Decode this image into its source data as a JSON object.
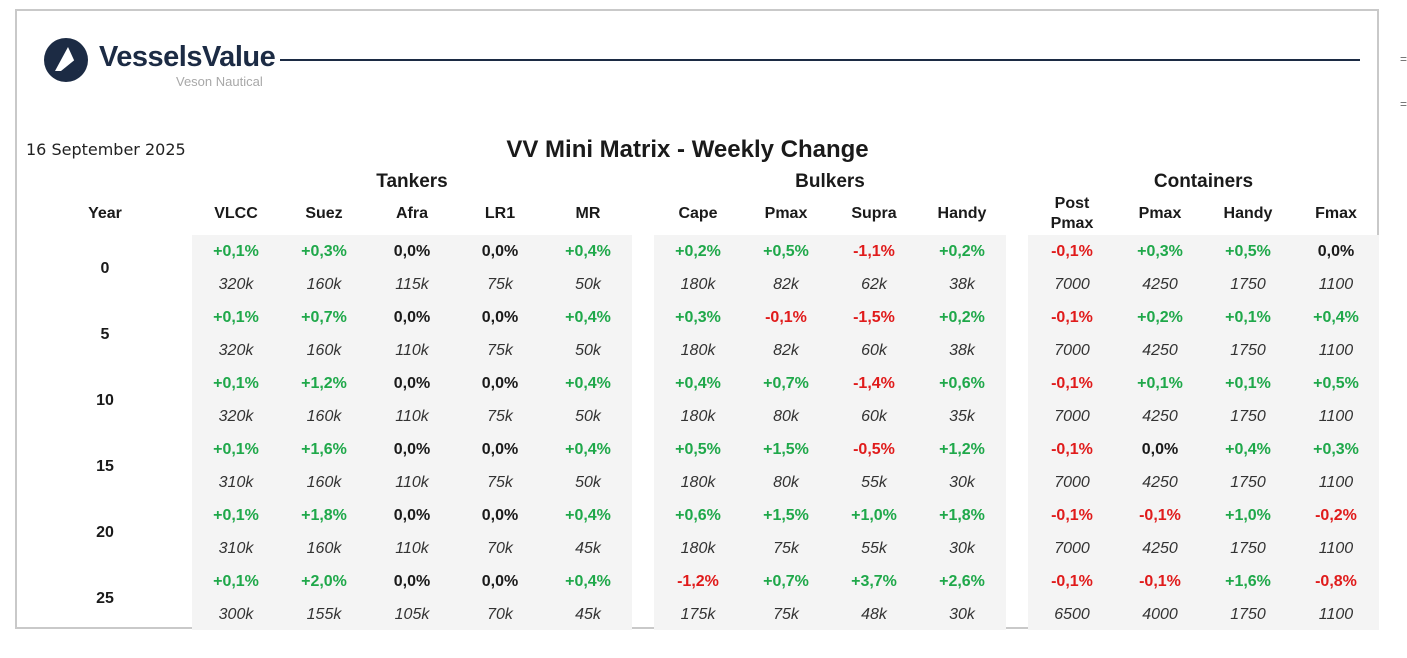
{
  "brand": {
    "name": "VesselsValue",
    "sub": "Veson Nautical"
  },
  "date": "16 September 2025",
  "title": "VV Mini Matrix - Weekly Change",
  "year_label": "Year",
  "groups": [
    {
      "name": "Tankers",
      "columns": [
        "VLCC",
        "Suez",
        "Afra",
        "LR1",
        "MR"
      ]
    },
    {
      "name": "Bulkers",
      "columns": [
        "Cape",
        "Pmax",
        "Supra",
        "Handy"
      ]
    },
    {
      "name": "Containers",
      "columns": [
        "Post\nPmax",
        "Pmax",
        "Handy",
        "Fmax"
      ]
    }
  ],
  "rows": [
    {
      "year": "0",
      "changes": [
        "+0,1%",
        "+0,3%",
        "0,0%",
        "0,0%",
        "+0,4%",
        "+0,2%",
        "+0,5%",
        "-1,1%",
        "+0,2%",
        "-0,1%",
        "+0,3%",
        "+0,5%",
        "0,0%"
      ],
      "values": [
        "320k",
        "160k",
        "115k",
        "75k",
        "50k",
        "180k",
        "82k",
        "62k",
        "38k",
        "7000",
        "4250",
        "1750",
        "1100"
      ]
    },
    {
      "year": "5",
      "changes": [
        "+0,1%",
        "+0,7%",
        "0,0%",
        "0,0%",
        "+0,4%",
        "+0,3%",
        "-0,1%",
        "-1,5%",
        "+0,2%",
        "-0,1%",
        "+0,2%",
        "+0,1%",
        "+0,4%"
      ],
      "values": [
        "320k",
        "160k",
        "110k",
        "75k",
        "50k",
        "180k",
        "82k",
        "60k",
        "38k",
        "7000",
        "4250",
        "1750",
        "1100"
      ]
    },
    {
      "year": "10",
      "changes": [
        "+0,1%",
        "+1,2%",
        "0,0%",
        "0,0%",
        "+0,4%",
        "+0,4%",
        "+0,7%",
        "-1,4%",
        "+0,6%",
        "-0,1%",
        "+0,1%",
        "+0,1%",
        "+0,5%"
      ],
      "values": [
        "320k",
        "160k",
        "110k",
        "75k",
        "50k",
        "180k",
        "80k",
        "60k",
        "35k",
        "7000",
        "4250",
        "1750",
        "1100"
      ]
    },
    {
      "year": "15",
      "changes": [
        "+0,1%",
        "+1,6%",
        "0,0%",
        "0,0%",
        "+0,4%",
        "+0,5%",
        "+1,5%",
        "-0,5%",
        "+1,2%",
        "-0,1%",
        "0,0%",
        "+0,4%",
        "+0,3%"
      ],
      "values": [
        "310k",
        "160k",
        "110k",
        "75k",
        "50k",
        "180k",
        "80k",
        "55k",
        "30k",
        "7000",
        "4250",
        "1750",
        "1100"
      ]
    },
    {
      "year": "20",
      "changes": [
        "+0,1%",
        "+1,8%",
        "0,0%",
        "0,0%",
        "+0,4%",
        "+0,6%",
        "+1,5%",
        "+1,0%",
        "+1,8%",
        "-0,1%",
        "-0,1%",
        "+1,0%",
        "-0,2%"
      ],
      "values": [
        "310k",
        "160k",
        "110k",
        "70k",
        "45k",
        "180k",
        "75k",
        "55k",
        "30k",
        "7000",
        "4250",
        "1750",
        "1100"
      ]
    },
    {
      "year": "25",
      "changes": [
        "+0,1%",
        "+2,0%",
        "0,0%",
        "0,0%",
        "+0,4%",
        "-1,2%",
        "+0,7%",
        "+3,7%",
        "+2,6%",
        "-0,1%",
        "-0,1%",
        "+1,6%",
        "-0,8%"
      ],
      "values": [
        "300k",
        "155k",
        "105k",
        "70k",
        "45k",
        "175k",
        "75k",
        "48k",
        "30k",
        "6500",
        "4000",
        "1750",
        "1100"
      ]
    }
  ],
  "colors": {
    "positive": "#1fa84a",
    "negative": "#e01b1b",
    "neutral": "#1a1a1a",
    "panel": "#f4f4f4",
    "brand": "#1c2b44"
  }
}
